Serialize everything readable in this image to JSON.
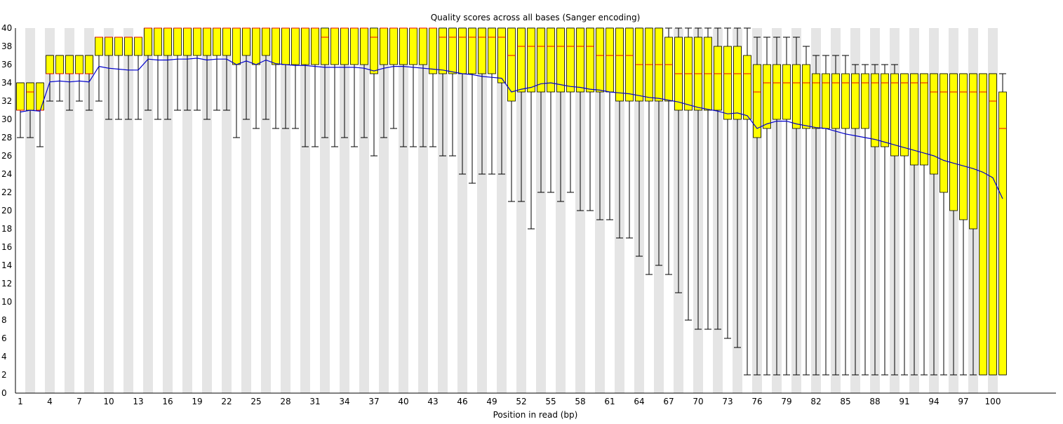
{
  "chart_data": {
    "type": "boxplot",
    "title": "Quality scores across all bases (Sanger encoding)",
    "xlabel": "Position in read (bp)",
    "ylabel": "",
    "ylim": [
      0,
      40
    ],
    "yticks": [
      0,
      2,
      4,
      6,
      8,
      10,
      12,
      14,
      16,
      18,
      20,
      22,
      24,
      26,
      28,
      30,
      32,
      34,
      36,
      38,
      40
    ],
    "xticks": [
      1,
      4,
      7,
      10,
      13,
      16,
      19,
      22,
      25,
      28,
      31,
      34,
      37,
      40,
      43,
      46,
      49,
      52,
      55,
      58,
      61,
      64,
      67,
      70,
      73,
      76,
      79,
      82,
      85,
      88,
      91,
      94,
      97,
      100
    ],
    "positions": [
      1,
      2,
      3,
      4,
      5,
      6,
      7,
      8,
      9,
      10,
      11,
      12,
      13,
      14,
      15,
      16,
      17,
      18,
      19,
      20,
      21,
      22,
      23,
      24,
      25,
      26,
      27,
      28,
      29,
      30,
      31,
      32,
      33,
      34,
      35,
      36,
      37,
      38,
      39,
      40,
      41,
      42,
      43,
      44,
      45,
      46,
      47,
      48,
      49,
      50,
      51,
      52,
      53,
      54,
      55,
      56,
      57,
      58,
      59,
      60,
      61,
      62,
      63,
      64,
      65,
      66,
      67,
      68,
      69,
      70,
      71,
      72,
      73,
      74,
      75,
      76,
      77,
      78,
      79,
      80,
      81,
      82,
      83,
      84,
      85,
      86,
      87,
      88,
      89,
      90,
      91,
      92,
      93,
      94,
      95,
      96,
      97,
      98,
      99,
      100,
      101
    ],
    "q1": [
      31,
      31,
      31,
      35,
      35,
      35,
      35,
      35,
      37,
      37,
      37,
      37,
      37,
      37,
      37,
      37,
      37,
      37,
      37,
      37,
      37,
      37,
      36,
      37,
      36,
      37,
      36,
      36,
      36,
      36,
      36,
      36,
      36,
      36,
      36,
      36,
      35,
      36,
      36,
      36,
      36,
      36,
      35,
      35,
      35,
      35,
      35,
      35,
      35,
      34,
      32,
      33,
      33,
      33,
      33,
      33,
      33,
      33,
      33,
      33,
      33,
      32,
      32,
      32,
      32,
      32,
      32,
      31,
      31,
      31,
      31,
      31,
      30,
      30,
      30,
      28,
      29,
      30,
      30,
      29,
      29,
      29,
      29,
      29,
      29,
      29,
      29,
      27,
      27,
      26,
      26,
      25,
      25,
      24,
      22,
      20,
      19,
      18,
      2,
      2,
      2
    ],
    "median": [
      31,
      33,
      31,
      35,
      35,
      35,
      35,
      35,
      39,
      39,
      39,
      39,
      39,
      40,
      40,
      40,
      40,
      40,
      40,
      40,
      40,
      40,
      40,
      40,
      40,
      40,
      40,
      40,
      40,
      40,
      40,
      39,
      40,
      40,
      40,
      40,
      39,
      40,
      40,
      40,
      40,
      40,
      40,
      39,
      39,
      39,
      39,
      39,
      39,
      39,
      37,
      38,
      38,
      38,
      38,
      38,
      38,
      38,
      38,
      37,
      37,
      37,
      37,
      36,
      36,
      36,
      36,
      35,
      35,
      35,
      35,
      35,
      35,
      35,
      35,
      33,
      34,
      34,
      34,
      34,
      34,
      34,
      34,
      34,
      34,
      34,
      34,
      34,
      34,
      34,
      34,
      34,
      34,
      33,
      33,
      33,
      33,
      33,
      33,
      32,
      29
    ],
    "q3": [
      34,
      34,
      34,
      37,
      37,
      37,
      37,
      37,
      39,
      39,
      39,
      39,
      39,
      41,
      41,
      41,
      41,
      41,
      41,
      41,
      41,
      41,
      41,
      41,
      41,
      41,
      41,
      41,
      41,
      41,
      41,
      41,
      41,
      41,
      41,
      41,
      41,
      41,
      41,
      41,
      41,
      41,
      41,
      41,
      41,
      41,
      41,
      41,
      41,
      41,
      40,
      40,
      40,
      40,
      40,
      40,
      40,
      40,
      40,
      40,
      40,
      40,
      40,
      40,
      40,
      40,
      39,
      39,
      39,
      39,
      39,
      38,
      38,
      38,
      37,
      36,
      36,
      36,
      36,
      36,
      36,
      35,
      35,
      35,
      35,
      35,
      35,
      35,
      35,
      35,
      35,
      35,
      35,
      35,
      35,
      35,
      35,
      35,
      35,
      35,
      33
    ],
    "lower_whisker": [
      28,
      28,
      27,
      32,
      32,
      31,
      32,
      31,
      32,
      30,
      30,
      30,
      30,
      31,
      30,
      30,
      31,
      31,
      31,
      30,
      31,
      31,
      28,
      30,
      29,
      30,
      29,
      29,
      29,
      27,
      27,
      28,
      27,
      28,
      27,
      28,
      26,
      28,
      29,
      27,
      27,
      27,
      27,
      26,
      26,
      24,
      23,
      24,
      24,
      24,
      21,
      21,
      18,
      22,
      22,
      21,
      22,
      20,
      20,
      19,
      19,
      17,
      17,
      15,
      13,
      14,
      13,
      11,
      8,
      7,
      7,
      7,
      6,
      5,
      2,
      2,
      2,
      2,
      2,
      2,
      2,
      2,
      2,
      2,
      2,
      2,
      2,
      2,
      2,
      2,
      2,
      2,
      2,
      2,
      2,
      2,
      2,
      2,
      2,
      2,
      2
    ],
    "upper_whisker": [
      34,
      34,
      34,
      37,
      37,
      37,
      37,
      37,
      39,
      39,
      39,
      39,
      39,
      41,
      41,
      41,
      41,
      41,
      41,
      41,
      41,
      41,
      41,
      41,
      41,
      41,
      41,
      41,
      41,
      41,
      41,
      41,
      41,
      41,
      41,
      41,
      41,
      41,
      41,
      41,
      41,
      41,
      41,
      41,
      41,
      41,
      41,
      41,
      41,
      41,
      41,
      41,
      41,
      41,
      41,
      41,
      41,
      41,
      41,
      41,
      41,
      41,
      41,
      41,
      41,
      41,
      41,
      41,
      41,
      41,
      41,
      40,
      40,
      40,
      40,
      39,
      39,
      39,
      39,
      39,
      38,
      37,
      37,
      37,
      37,
      36,
      36,
      36,
      36,
      36,
      35,
      35,
      35,
      35,
      35,
      35,
      35,
      35,
      35,
      35,
      35
    ],
    "mean": [
      30.8,
      31,
      30.9,
      34.1,
      34.2,
      34.1,
      34.2,
      34.1,
      35.8,
      35.6,
      35.5,
      35.4,
      35.4,
      36.6,
      36.5,
      36.5,
      36.6,
      36.6,
      36.7,
      36.5,
      36.6,
      36.6,
      36,
      36.4,
      36,
      36.5,
      36.1,
      36,
      35.9,
      35.9,
      35.8,
      35.7,
      35.7,
      35.7,
      35.7,
      35.6,
      35.3,
      35.6,
      35.8,
      35.8,
      35.7,
      35.6,
      35.5,
      35.4,
      35.2,
      35,
      34.9,
      34.7,
      34.6,
      34.5,
      33,
      33.3,
      33.5,
      33.9,
      34,
      33.8,
      33.6,
      33.5,
      33.3,
      33.2,
      33,
      32.9,
      32.8,
      32.6,
      32.4,
      32.3,
      32.1,
      31.9,
      31.6,
      31.3,
      31.1,
      30.9,
      30.6,
      30.7,
      30.4,
      29,
      29.5,
      29.8,
      29.8,
      29.5,
      29.3,
      29.1,
      29,
      28.7,
      28.4,
      28.2,
      28,
      27.8,
      27.5,
      27.2,
      26.9,
      26.6,
      26.3,
      26,
      25.5,
      25.2,
      24.9,
      24.6,
      24.2,
      23.6,
      21.3
    ]
  }
}
